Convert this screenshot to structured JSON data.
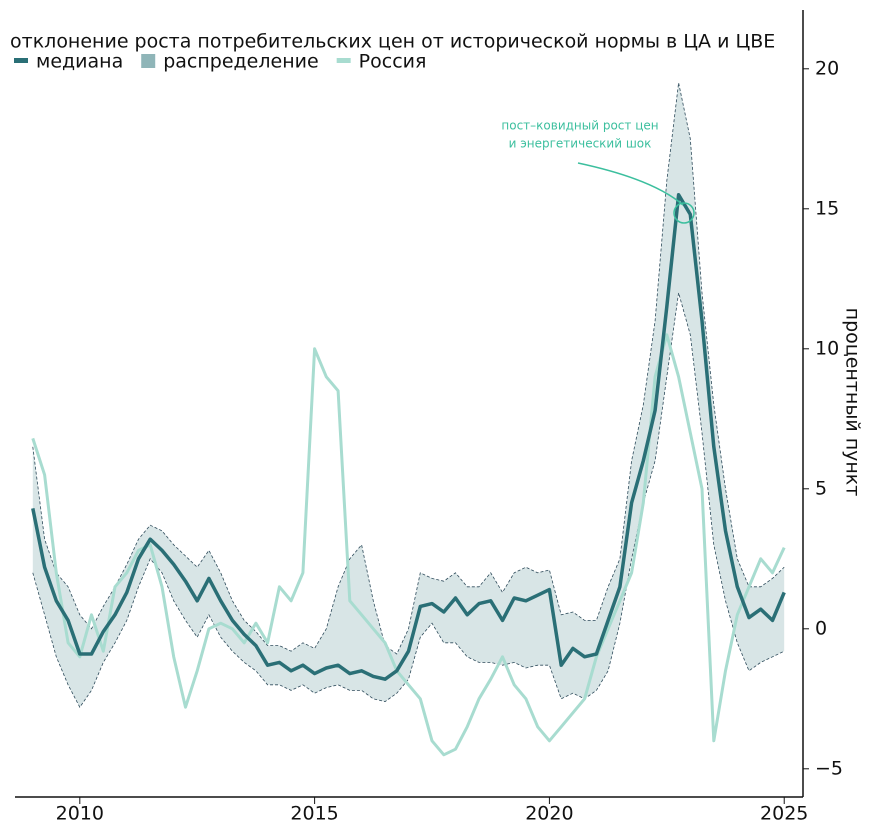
{
  "chart_data": {
    "type": "line",
    "title": "отклонение роста потребительских цен от исторической нормы в ЦА и ЦВЕ",
    "y_label": "процентный пункт",
    "annotation": [
      "пост–ковидный рост цен",
      "и энергетический шок"
    ],
    "x": [
      2009,
      2009.25,
      2009.5,
      2009.75,
      2010,
      2010.25,
      2010.5,
      2010.75,
      2011,
      2011.25,
      2011.5,
      2011.75,
      2012,
      2012.25,
      2012.5,
      2012.75,
      2013,
      2013.25,
      2013.5,
      2013.75,
      2014,
      2014.25,
      2014.5,
      2014.75,
      2015,
      2015.25,
      2015.5,
      2015.75,
      2016,
      2016.25,
      2016.5,
      2016.75,
      2017,
      2017.25,
      2017.5,
      2017.75,
      2018,
      2018.25,
      2018.5,
      2018.75,
      2019,
      2019.25,
      2019.5,
      2019.75,
      2020,
      2020.25,
      2020.5,
      2020.75,
      2021,
      2021.25,
      2021.5,
      2021.75,
      2022,
      2022.25,
      2022.5,
      2022.75,
      2023,
      2023.25,
      2023.5,
      2023.75,
      2024,
      2024.25,
      2024.5,
      2024.75,
      2025
    ],
    "series": [
      {
        "name": "медиана",
        "color": "#2a6f76",
        "values": [
          4.3,
          2.2,
          1.0,
          0.3,
          -0.9,
          -0.9,
          -0.1,
          0.5,
          1.3,
          2.5,
          3.2,
          2.8,
          2.3,
          1.7,
          1.0,
          1.8,
          1.0,
          0.3,
          -0.2,
          -0.6,
          -1.3,
          -1.2,
          -1.5,
          -1.3,
          -1.6,
          -1.4,
          -1.3,
          -1.6,
          -1.5,
          -1.7,
          -1.8,
          -1.5,
          -0.8,
          0.8,
          0.9,
          0.6,
          1.1,
          0.5,
          0.9,
          1.0,
          0.3,
          1.1,
          1.0,
          1.2,
          1.4,
          -1.3,
          -0.7,
          -1.0,
          -0.9,
          0.3,
          1.5,
          4.5,
          6.0,
          7.8,
          11.5,
          15.5,
          14.8,
          11.0,
          6.5,
          3.5,
          1.5,
          0.4,
          0.7,
          0.3,
          1.3
        ]
      },
      {
        "name": "распределение",
        "color": "#8fb5b8",
        "low": [
          2.0,
          0.5,
          -1.0,
          -2.0,
          -2.8,
          -2.2,
          -1.2,
          -0.5,
          0.3,
          1.5,
          2.5,
          2.0,
          1.0,
          0.3,
          -0.3,
          0.5,
          -0.3,
          -0.8,
          -1.2,
          -1.5,
          -2.0,
          -2.0,
          -2.2,
          -2.0,
          -2.3,
          -2.1,
          -2.0,
          -2.2,
          -2.2,
          -2.5,
          -2.6,
          -2.3,
          -1.8,
          -0.3,
          0.2,
          -0.5,
          -0.5,
          -1.0,
          -1.2,
          -1.2,
          -1.3,
          -1.2,
          -1.4,
          -1.3,
          -1.3,
          -2.5,
          -2.3,
          -2.5,
          -2.2,
          -1.5,
          0.2,
          2.5,
          4.5,
          6.0,
          9.0,
          12.0,
          10.5,
          7.0,
          3.0,
          1.0,
          -0.5,
          -1.5,
          -1.2,
          -1.0,
          -0.8
        ],
        "high": [
          6.5,
          3.2,
          2.0,
          1.5,
          0.5,
          0.0,
          0.8,
          1.5,
          2.3,
          3.2,
          3.7,
          3.5,
          3.0,
          2.6,
          2.2,
          2.8,
          2.0,
          1.0,
          0.3,
          -0.1,
          -0.6,
          -0.6,
          -0.8,
          -0.5,
          -0.7,
          0.0,
          1.5,
          2.5,
          3.0,
          1.0,
          -0.6,
          -0.9,
          0.0,
          2.0,
          1.8,
          1.7,
          2.0,
          1.5,
          1.5,
          2.0,
          1.3,
          2.0,
          2.2,
          2.0,
          2.1,
          0.5,
          0.6,
          0.3,
          0.3,
          1.5,
          2.5,
          6.0,
          8.0,
          11.0,
          16.0,
          19.5,
          17.5,
          12.0,
          8.0,
          5.0,
          2.5,
          1.5,
          1.5,
          1.8,
          2.2
        ]
      },
      {
        "name": "Россия",
        "color": "#a8dcd0",
        "values": [
          6.8,
          5.5,
          2.0,
          -0.5,
          -1.0,
          0.5,
          -0.8,
          1.5,
          2.0,
          2.8,
          3.0,
          1.5,
          -1.0,
          -2.8,
          -1.5,
          0.0,
          0.2,
          0.0,
          -0.5,
          0.2,
          -0.5,
          1.5,
          1.0,
          2.0,
          10.0,
          9.0,
          8.5,
          1.0,
          0.5,
          0.0,
          -0.5,
          -1.5,
          -2.0,
          -2.5,
          -4.0,
          -4.5,
          -4.3,
          -3.5,
          -2.5,
          -1.8,
          -1.0,
          -2.0,
          -2.5,
          -3.5,
          -4.0,
          -3.5,
          -3.0,
          -2.5,
          -1.0,
          0.0,
          1.0,
          2.0,
          4.5,
          9.0,
          10.5,
          9.0,
          7.0,
          5.0,
          -4.0,
          -1.5,
          0.5,
          1.5,
          2.5,
          2.0,
          2.9
        ]
      }
    ],
    "xlim": [
      2008.62,
      2025.4
    ],
    "xticks": [
      2010,
      2015,
      2020,
      2025
    ],
    "ylim": [
      -5.9,
      22.1
    ],
    "yticks": [
      {
        "value": -5,
        "label": "−5"
      },
      0,
      5,
      10,
      15,
      20
    ],
    "annotation_color": "#3cbf9e"
  }
}
